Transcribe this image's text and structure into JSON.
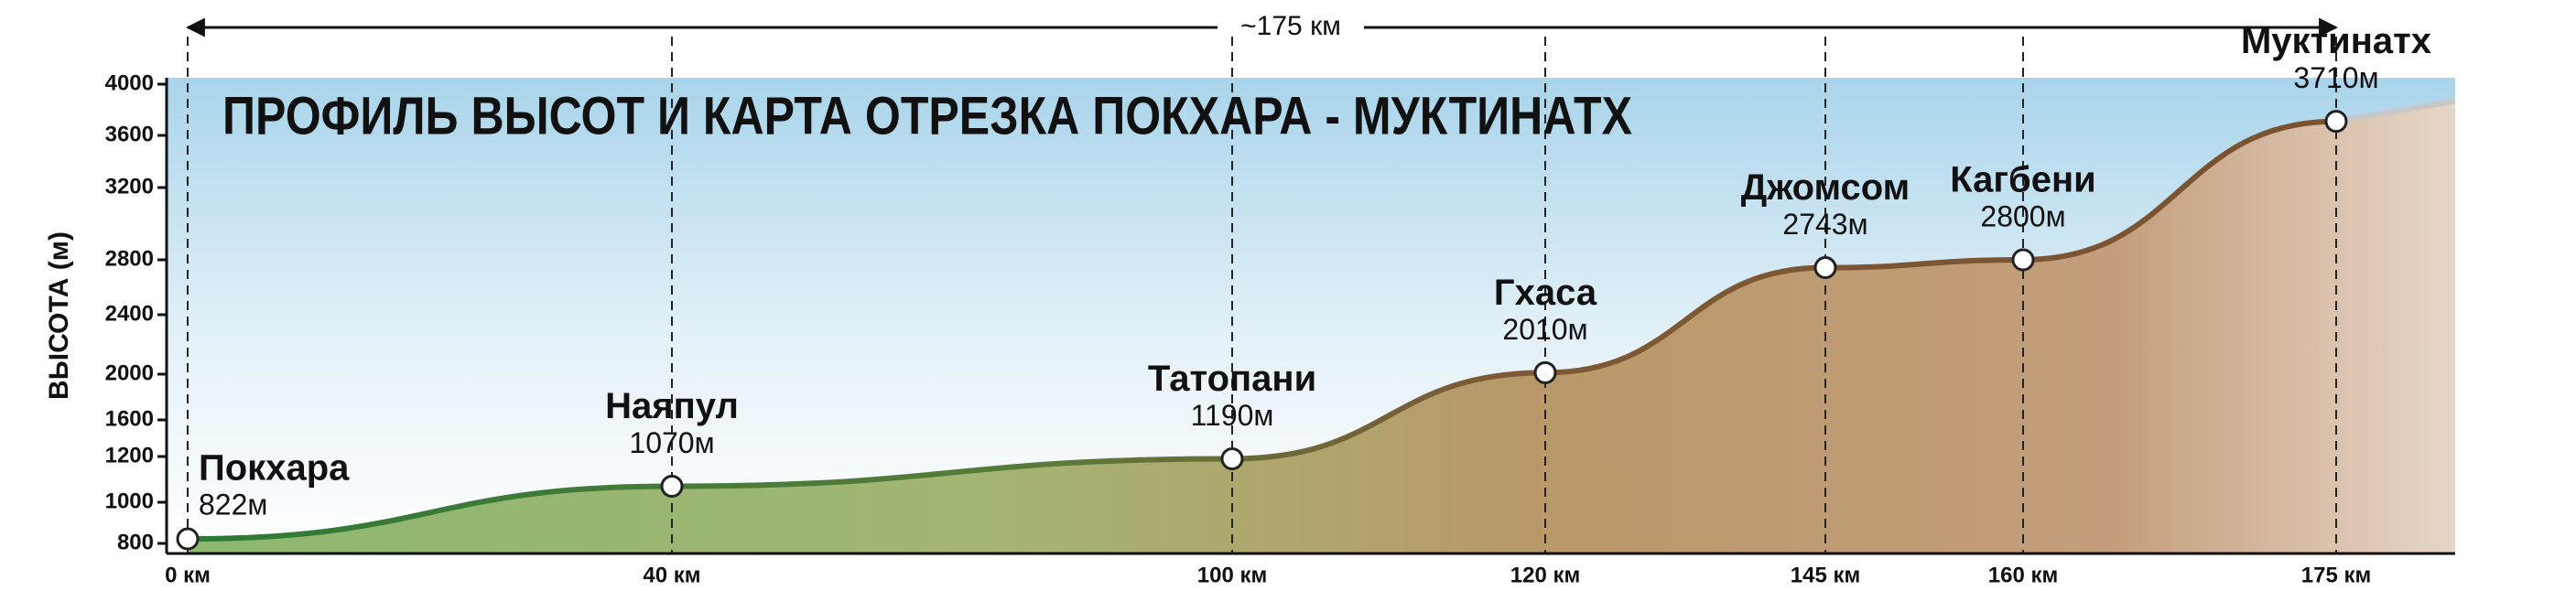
{
  "chart_data": {
    "type": "line",
    "title": "ПРОФИЛЬ ВЫСОТ И КАРТА ОТРЕЗКА ПОКХАРА - МУКТИНАТХ",
    "distance_label": "~175 км",
    "y_label": "ВЫСОТА (м)",
    "categories": [
      "0 км",
      "40 км",
      "100 км",
      "120 км",
      "145 км",
      "160 км",
      "175 км"
    ],
    "point_names": [
      "Покхара",
      "Наяпул",
      "Татопани",
      "Гхаса",
      "Джомсом",
      "Кагбени",
      "Муктинатх"
    ],
    "values": [
      822,
      1070,
      1190,
      2010,
      2743,
      2800,
      3710
    ],
    "value_labels": [
      "822м",
      "1070м",
      "1190м",
      "2010м",
      "2743м",
      "2800м",
      "3710м"
    ],
    "ylim": [
      800,
      4000
    ],
    "yticks": [
      800,
      1000,
      1200,
      1600,
      2000,
      2400,
      2800,
      3200,
      3600,
      4000
    ]
  }
}
